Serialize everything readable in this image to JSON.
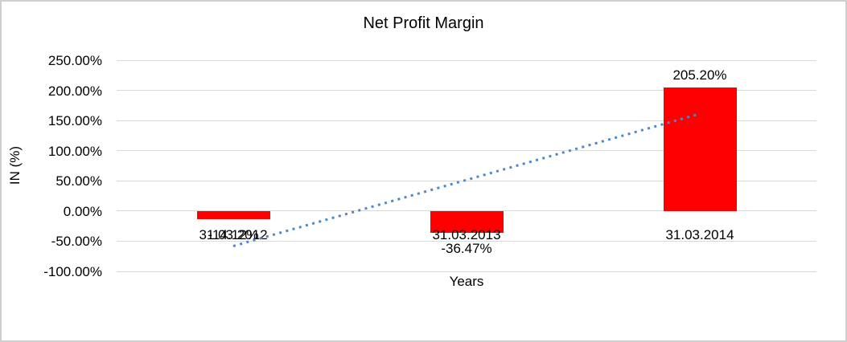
{
  "chart_data": {
    "type": "bar",
    "title": "Net Profit Margin",
    "xlabel": "Years",
    "ylabel": "IN (%)",
    "categories": [
      "31.03.2012",
      "31.03.2013",
      "31.03.2014"
    ],
    "series": [
      {
        "name": "Net Profit Margin",
        "values": [
          -14.12,
          -36.47,
          205.2
        ]
      }
    ],
    "data_labels": [
      "-14.12%",
      "-36.47%",
      "205.20%"
    ],
    "y_ticks": [
      {
        "label": "250.00%",
        "value": 250
      },
      {
        "label": "200.00%",
        "value": 200
      },
      {
        "label": "150.00%",
        "value": 150
      },
      {
        "label": "100.00%",
        "value": 100
      },
      {
        "label": "50.00%",
        "value": 50
      },
      {
        "label": "0.00%",
        "value": 0
      },
      {
        "label": "-50.00%",
        "value": -50
      },
      {
        "label": "-100.00%",
        "value": -100
      }
    ],
    "ylim": [
      -100,
      250
    ],
    "grid": true,
    "legend": false,
    "bar_color": "#FF0000",
    "gridline_color": "#D9D9D9",
    "text_color": "#000000",
    "trendline": {
      "style": "dotted",
      "color": "#4F87C7",
      "start_value": -58.1,
      "end_value": 161.2
    }
  }
}
